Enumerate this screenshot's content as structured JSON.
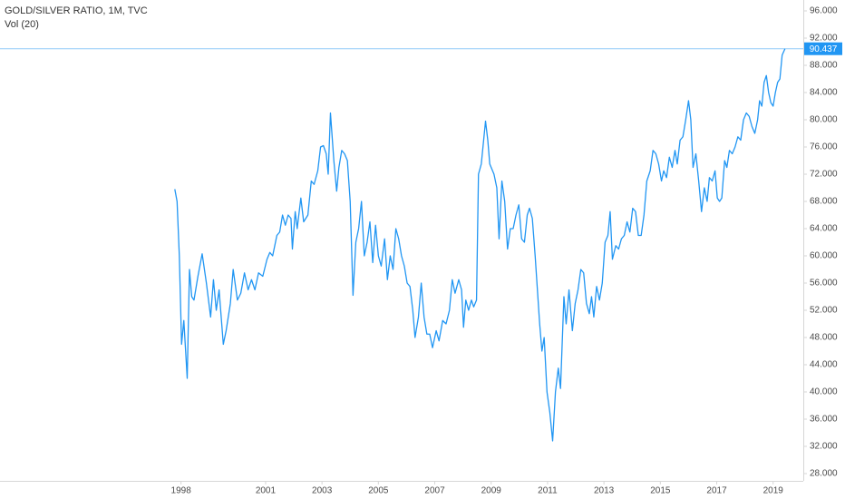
{
  "chart_data": {
    "type": "line",
    "title": "GOLD/SILVER RATIO, 1M, TVC",
    "subtitle": "Vol (20)",
    "color": "#2196f3",
    "xlim": [
      1991.58,
      2020.07
    ],
    "ylim": [
      26.93,
      97.6
    ],
    "xticks": [
      1998,
      2001,
      2003,
      2005,
      2007,
      2009,
      2011,
      2013,
      2015,
      2017,
      2019
    ],
    "yticks": [
      {
        "value": 28,
        "label": "28.000"
      },
      {
        "value": 32,
        "label": "32.000"
      },
      {
        "value": 36,
        "label": "36.000"
      },
      {
        "value": 40,
        "label": "40.000"
      },
      {
        "value": 44,
        "label": "44.000"
      },
      {
        "value": 48,
        "label": "48.000"
      },
      {
        "value": 52,
        "label": "52.000"
      },
      {
        "value": 56,
        "label": "56.000"
      },
      {
        "value": 60,
        "label": "60.000"
      },
      {
        "value": 64,
        "label": "64.000"
      },
      {
        "value": 68,
        "label": "68.000"
      },
      {
        "value": 72,
        "label": "72.000"
      },
      {
        "value": 76,
        "label": "76.000"
      },
      {
        "value": 80,
        "label": "80.000"
      },
      {
        "value": 84,
        "label": "84.000"
      },
      {
        "value": 88,
        "label": "88.000"
      },
      {
        "value": 92,
        "label": "92.000"
      },
      {
        "value": 96,
        "label": "96.000"
      }
    ],
    "x": [
      1997.78,
      1997.86,
      1997.94,
      1998.02,
      1998.1,
      1998.22,
      1998.3,
      1998.38,
      1998.46,
      1998.6,
      1998.75,
      1998.9,
      1999.05,
      1999.15,
      1999.25,
      1999.35,
      1999.5,
      1999.6,
      1999.75,
      1999.85,
      2000.0,
      2000.12,
      2000.25,
      2000.38,
      2000.5,
      2000.62,
      2000.75,
      2000.9,
      2001.05,
      2001.15,
      2001.25,
      2001.4,
      2001.5,
      2001.6,
      2001.7,
      2001.8,
      2001.9,
      2001.95,
      2002.05,
      2002.12,
      2002.25,
      2002.35,
      2002.5,
      2002.62,
      2002.72,
      2002.85,
      2002.95,
      2003.05,
      2003.15,
      2003.22,
      2003.3,
      2003.42,
      2003.52,
      2003.6,
      2003.7,
      2003.8,
      2003.9,
      2004.0,
      2004.1,
      2004.2,
      2004.3,
      2004.4,
      2004.5,
      2004.6,
      2004.7,
      2004.8,
      2004.9,
      2005.0,
      2005.1,
      2005.22,
      2005.32,
      2005.42,
      2005.52,
      2005.62,
      2005.72,
      2005.82,
      2005.92,
      2006.02,
      2006.12,
      2006.22,
      2006.3,
      2006.42,
      2006.52,
      2006.62,
      2006.72,
      2006.82,
      2006.92,
      2007.05,
      2007.15,
      2007.28,
      2007.4,
      2007.52,
      2007.62,
      2007.72,
      2007.85,
      2007.95,
      2008.02,
      2008.1,
      2008.2,
      2008.3,
      2008.38,
      2008.48,
      2008.55,
      2008.65,
      2008.8,
      2008.88,
      2008.95,
      2009.1,
      2009.2,
      2009.28,
      2009.38,
      2009.48,
      2009.58,
      2009.68,
      2009.78,
      2009.88,
      2009.98,
      2010.08,
      2010.18,
      2010.28,
      2010.36,
      2010.46,
      2010.56,
      2010.72,
      2010.8,
      2010.88,
      2010.98,
      2011.08,
      2011.18,
      2011.28,
      2011.38,
      2011.46,
      2011.58,
      2011.66,
      2011.76,
      2011.88,
      2011.98,
      2012.08,
      2012.18,
      2012.28,
      2012.38,
      2012.48,
      2012.56,
      2012.64,
      2012.74,
      2012.84,
      2012.94,
      2013.04,
      2013.14,
      2013.22,
      2013.3,
      2013.42,
      2013.52,
      2013.62,
      2013.72,
      2013.82,
      2013.92,
      2014.02,
      2014.12,
      2014.22,
      2014.32,
      2014.42,
      2014.52,
      2014.64,
      2014.74,
      2014.84,
      2014.94,
      2015.04,
      2015.12,
      2015.22,
      2015.32,
      2015.42,
      2015.52,
      2015.6,
      2015.7,
      2015.8,
      2015.9,
      2016.0,
      2016.08,
      2016.16,
      2016.26,
      2016.36,
      2016.46,
      2016.56,
      2016.66,
      2016.74,
      2016.84,
      2016.94,
      2017.02,
      2017.1,
      2017.18,
      2017.28,
      2017.36,
      2017.45,
      2017.55,
      2017.65,
      2017.75,
      2017.85,
      2017.95,
      2018.05,
      2018.15,
      2018.25,
      2018.35,
      2018.45,
      2018.52,
      2018.6,
      2018.68,
      2018.76,
      2018.84,
      2018.92,
      2019.0,
      2019.08,
      2019.16,
      2019.24,
      2019.32,
      2019.42
    ],
    "values": [
      69.8,
      68,
      60,
      47,
      50.5,
      42,
      58,
      54,
      53.5,
      57,
      60.3,
      56,
      51,
      56.5,
      52,
      55,
      47,
      49,
      53,
      58,
      53.5,
      54.5,
      57.5,
      55,
      56.5,
      55,
      57.5,
      57,
      59.5,
      60.5,
      60,
      63,
      63.5,
      66,
      64.5,
      66,
      65.5,
      61,
      66.5,
      64,
      68.5,
      65,
      66,
      71,
      70.5,
      72.5,
      76,
      76.2,
      75,
      72,
      81,
      74,
      69.5,
      73,
      75.5,
      75,
      74,
      68,
      54.2,
      62,
      64,
      68,
      60,
      62,
      65,
      59,
      64.5,
      60,
      58.5,
      62.5,
      56.5,
      60,
      58,
      64,
      62.5,
      60,
      58.5,
      56,
      55.5,
      52,
      48,
      51,
      56,
      51,
      48.5,
      48.5,
      46.5,
      49,
      47.5,
      50.5,
      50,
      52,
      56.5,
      54.5,
      56.5,
      55,
      49.5,
      53.5,
      52,
      53.5,
      52.5,
      53.5,
      72,
      73.5,
      79.8,
      77,
      73.5,
      72,
      70,
      62.5,
      71,
      68,
      61,
      64,
      64,
      66,
      67.5,
      62.5,
      62,
      66,
      67,
      65.5,
      60,
      50,
      46,
      48,
      40,
      37,
      32.8,
      40,
      43.5,
      40.5,
      54,
      50,
      55,
      49,
      53,
      55,
      58,
      57.5,
      53,
      51.5,
      54,
      51,
      55.5,
      53.5,
      56,
      62,
      63,
      66.5,
      59.5,
      61.5,
      61,
      62.5,
      63,
      65,
      63.5,
      67,
      66.5,
      63,
      63,
      66,
      71,
      72.5,
      75.5,
      75,
      73.5,
      71,
      72.5,
      71.5,
      74.5,
      73,
      75.5,
      73.5,
      77,
      77.5,
      80,
      82.8,
      80,
      73,
      75,
      71,
      66.5,
      70,
      68,
      71.5,
      71,
      72.5,
      68.5,
      68,
      68.5,
      74,
      73,
      75.5,
      75,
      76,
      77.5,
      77,
      80,
      81,
      80.5,
      79,
      78,
      80,
      82.8,
      82,
      85.5,
      86.5,
      84,
      82.5,
      82,
      84,
      85.5,
      86,
      89.5,
      90.437
    ]
  }
}
